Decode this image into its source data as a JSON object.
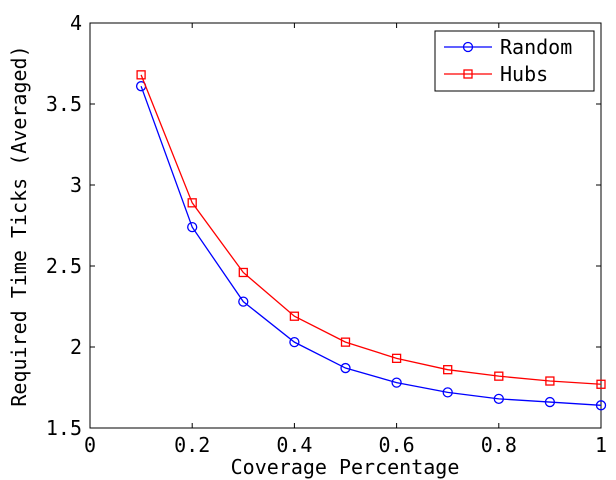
{
  "chart_data": {
    "type": "line",
    "title": "",
    "xlabel": "Coverage Percentage",
    "ylabel": "Required Time Ticks (Averaged)",
    "xlim": [
      0,
      1
    ],
    "ylim": [
      1.5,
      4
    ],
    "xticks": [
      0,
      0.2,
      0.4,
      0.6,
      0.8,
      1
    ],
    "xtick_labels": [
      "0",
      "0.2",
      "0.4",
      "0.6",
      "0.8",
      "1"
    ],
    "yticks": [
      1.5,
      2,
      2.5,
      3,
      3.5,
      4
    ],
    "ytick_labels": [
      "1.5",
      "2",
      "2.5",
      "3",
      "3.5",
      "4"
    ],
    "grid": false,
    "legend_position": "top-right",
    "x": [
      0.1,
      0.2,
      0.3,
      0.4,
      0.5,
      0.6,
      0.7,
      0.8,
      0.9,
      1.0
    ],
    "series": [
      {
        "name": "Random",
        "color": "#0000ff",
        "marker": "circle",
        "values": [
          3.61,
          2.74,
          2.28,
          2.03,
          1.87,
          1.78,
          1.72,
          1.68,
          1.66,
          1.64
        ]
      },
      {
        "name": "Hubs",
        "color": "#ff0000",
        "marker": "square",
        "values": [
          3.68,
          2.89,
          2.46,
          2.19,
          2.03,
          1.93,
          1.86,
          1.82,
          1.79,
          1.77
        ]
      }
    ]
  }
}
